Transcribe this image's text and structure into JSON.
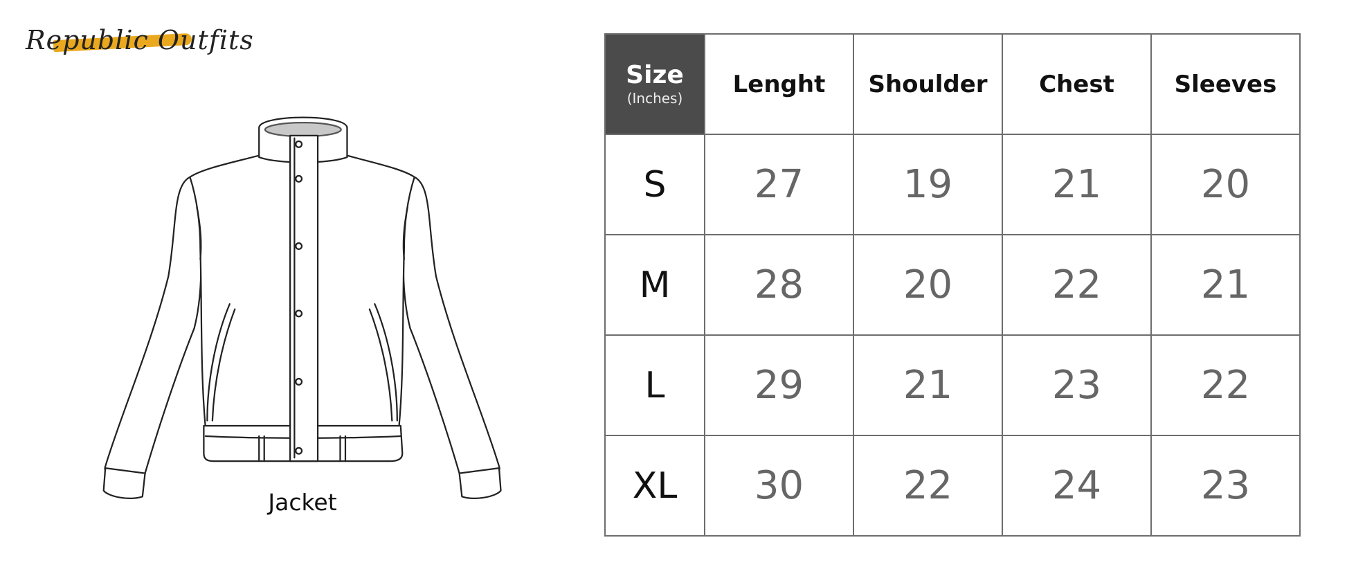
{
  "brand": {
    "logo_text": "Republic Outfits",
    "accent_color": "#e9a81e"
  },
  "garment": {
    "label": "Jacket",
    "icon": "jacket-line-drawing"
  },
  "size_chart": {
    "header": {
      "size_label": "Size",
      "unit_label": "(Inches)",
      "header_bg": "#4b4b4b"
    },
    "columns": [
      "Lenght",
      "Shoulder",
      "Chest",
      "Sleeves"
    ],
    "rows": [
      {
        "size": "S",
        "values": [
          "27",
          "19",
          "21",
          "20"
        ]
      },
      {
        "size": "M",
        "values": [
          "28",
          "20",
          "22",
          "21"
        ]
      },
      {
        "size": "L",
        "values": [
          "29",
          "21",
          "23",
          "22"
        ]
      },
      {
        "size": "XL",
        "values": [
          "30",
          "22",
          "24",
          "23"
        ]
      }
    ]
  }
}
